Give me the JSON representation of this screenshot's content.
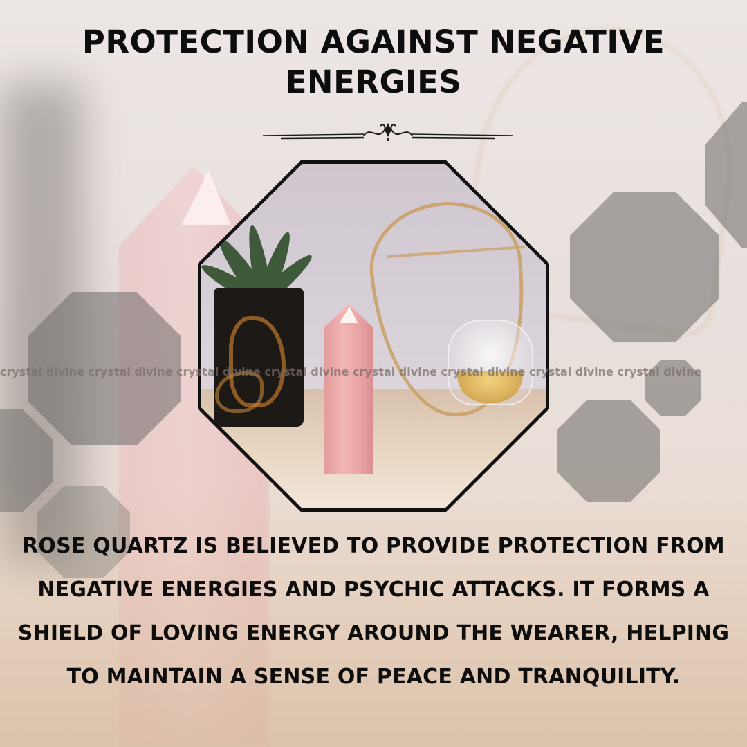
{
  "header": {
    "title": "PROTECTION AGAINST NEGATIVE ENERGIES"
  },
  "watermark": {
    "text": "crystal divine crystal divine crystal divine crystal divine crystal divine crystal divine crystal divine crystal divine"
  },
  "body": {
    "paragraph": "ROSE QUARTZ IS BELIEVED TO PROVIDE PROTECTION FROM NEGATIVE ENERGIES AND PSYCHIC ATTACKS. IT FORMS A SHIELD OF LOVING ENERGY AROUND THE WEARER, HELPING TO MAINTAIN A SENSE OF PEACE AND TRANQUILITY."
  },
  "colors": {
    "text": "#0d0d0d",
    "octagon_overlay": "#6e6c6a",
    "rose_quartz": "#f1b5b3",
    "gold": "#c99f62"
  }
}
